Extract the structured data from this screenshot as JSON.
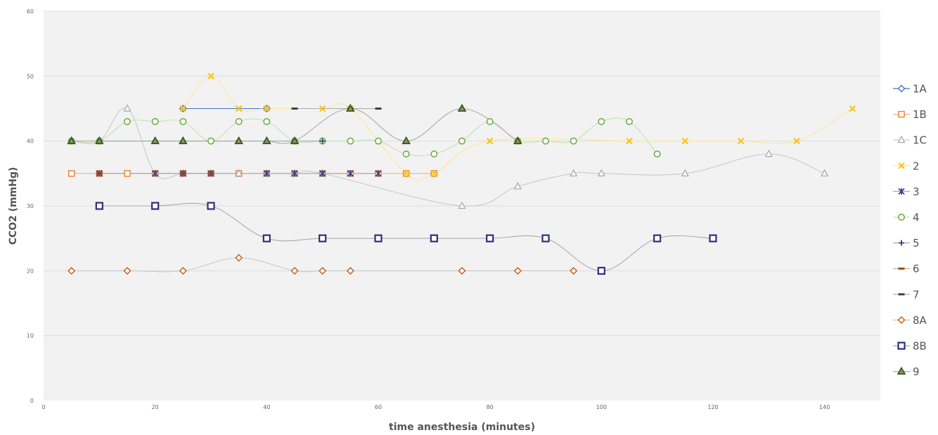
{
  "chart_data": {
    "type": "line",
    "title": "",
    "xlabel": "time anesthesia (minutes)",
    "ylabel": "CCO2 (mmHg)",
    "xlim": [
      0,
      150
    ],
    "ylim": [
      0,
      60
    ],
    "xticks": [
      0,
      20,
      40,
      60,
      80,
      100,
      120,
      140
    ],
    "yticks": [
      0,
      10,
      20,
      30,
      40,
      50,
      60
    ],
    "grid": "horizontal",
    "legend_position": "right",
    "smooth": true,
    "series": [
      {
        "name": "1A",
        "color": "#4472C4",
        "marker": "diamond",
        "line": "#4472C4",
        "points": [
          [
            25,
            45
          ],
          [
            40,
            45
          ]
        ]
      },
      {
        "name": "1B",
        "color": "#ED7D31",
        "marker": "square",
        "line": "#F4B183",
        "points": [
          [
            5,
            35
          ],
          [
            10,
            35
          ],
          [
            15,
            35
          ],
          [
            20,
            35
          ],
          [
            25,
            35
          ],
          [
            30,
            35
          ],
          [
            35,
            35
          ],
          [
            40,
            35
          ],
          [
            45,
            35
          ],
          [
            50,
            35
          ],
          [
            55,
            35
          ],
          [
            60,
            35
          ],
          [
            65,
            35
          ],
          [
            70,
            35
          ]
        ]
      },
      {
        "name": "1C",
        "color": "#A5A5A5",
        "marker": "triangle",
        "line": "#C9C9C9",
        "points": [
          [
            5,
            40
          ],
          [
            10,
            40
          ],
          [
            15,
            45
          ],
          [
            20,
            35
          ],
          [
            25,
            35
          ],
          [
            30,
            35
          ],
          [
            35,
            35
          ],
          [
            40,
            35
          ],
          [
            45,
            35
          ],
          [
            50,
            35
          ],
          [
            75,
            30
          ],
          [
            85,
            33
          ],
          [
            95,
            35
          ],
          [
            100,
            35
          ],
          [
            115,
            35
          ],
          [
            130,
            38
          ],
          [
            140,
            35
          ]
        ]
      },
      {
        "name": "2",
        "color": "#FFC000",
        "marker": "x",
        "line": "#FFE699",
        "points": [
          [
            25,
            45
          ],
          [
            30,
            50
          ],
          [
            35,
            45
          ],
          [
            40,
            45
          ],
          [
            50,
            45
          ],
          [
            55,
            45
          ],
          [
            65,
            35
          ],
          [
            70,
            35
          ],
          [
            80,
            40
          ],
          [
            105,
            40
          ],
          [
            115,
            40
          ],
          [
            125,
            40
          ],
          [
            135,
            40
          ],
          [
            145,
            45
          ]
        ]
      },
      {
        "name": "3",
        "color": "#3B3B8F",
        "marker": "star",
        "line": "#AAAAAA",
        "points": [
          [
            10,
            35
          ],
          [
            20,
            35
          ],
          [
            25,
            35
          ],
          [
            30,
            35
          ],
          [
            40,
            35
          ],
          [
            45,
            35
          ],
          [
            50,
            35
          ],
          [
            55,
            35
          ],
          [
            60,
            35
          ]
        ]
      },
      {
        "name": "4",
        "color": "#70AD47",
        "marker": "circle",
        "line": "#C5E0B4",
        "points": [
          [
            5,
            40
          ],
          [
            10,
            40
          ],
          [
            15,
            43
          ],
          [
            20,
            43
          ],
          [
            25,
            43
          ],
          [
            30,
            40
          ],
          [
            35,
            43
          ],
          [
            40,
            43
          ],
          [
            45,
            40
          ],
          [
            50,
            40
          ],
          [
            55,
            40
          ],
          [
            60,
            40
          ],
          [
            65,
            38
          ],
          [
            70,
            38
          ],
          [
            75,
            40
          ],
          [
            80,
            43
          ],
          [
            85,
            40
          ],
          [
            90,
            40
          ],
          [
            95,
            40
          ],
          [
            100,
            43
          ],
          [
            105,
            43
          ],
          [
            110,
            38
          ]
        ]
      },
      {
        "name": "5",
        "color": "#264478",
        "marker": "plus",
        "line": "#AAAAAA",
        "points": [
          [
            10,
            40
          ],
          [
            20,
            40
          ],
          [
            25,
            40
          ],
          [
            35,
            40
          ],
          [
            40,
            40
          ],
          [
            45,
            40
          ],
          [
            50,
            40
          ]
        ]
      },
      {
        "name": "6",
        "color": "#9E480E",
        "marker": "dash",
        "line": "#AAAAAA",
        "points": [
          [
            10,
            35
          ],
          [
            25,
            35
          ],
          [
            30,
            35
          ]
        ]
      },
      {
        "name": "7",
        "color": "#404040",
        "marker": "dash",
        "line": "#AAAAAA",
        "points": [
          [
            45,
            45
          ],
          [
            55,
            45
          ],
          [
            60,
            45
          ]
        ]
      },
      {
        "name": "8A",
        "color": "#C55A11",
        "marker": "diamond",
        "line": "#C9C9C9",
        "points": [
          [
            5,
            20
          ],
          [
            15,
            20
          ],
          [
            25,
            20
          ],
          [
            35,
            22
          ],
          [
            45,
            20
          ],
          [
            50,
            20
          ],
          [
            55,
            20
          ],
          [
            75,
            20
          ],
          [
            85,
            20
          ],
          [
            95,
            20
          ]
        ]
      },
      {
        "name": "8B",
        "color": "#2E2E7A",
        "marker": "square-bold",
        "line": "#AAAAAA",
        "points": [
          [
            10,
            30
          ],
          [
            20,
            30
          ],
          [
            30,
            30
          ],
          [
            40,
            25
          ],
          [
            50,
            25
          ],
          [
            60,
            25
          ],
          [
            70,
            25
          ],
          [
            80,
            25
          ],
          [
            90,
            25
          ],
          [
            100,
            20
          ],
          [
            110,
            25
          ],
          [
            120,
            25
          ]
        ]
      },
      {
        "name": "9",
        "color": "#375623",
        "marker": "triangle-bold",
        "line": "#AAAAAA",
        "points": [
          [
            5,
            40
          ],
          [
            10,
            40
          ],
          [
            20,
            40
          ],
          [
            25,
            40
          ],
          [
            35,
            40
          ],
          [
            40,
            40
          ],
          [
            45,
            40
          ],
          [
            55,
            45
          ],
          [
            65,
            40
          ],
          [
            75,
            45
          ],
          [
            85,
            40
          ]
        ]
      }
    ]
  }
}
